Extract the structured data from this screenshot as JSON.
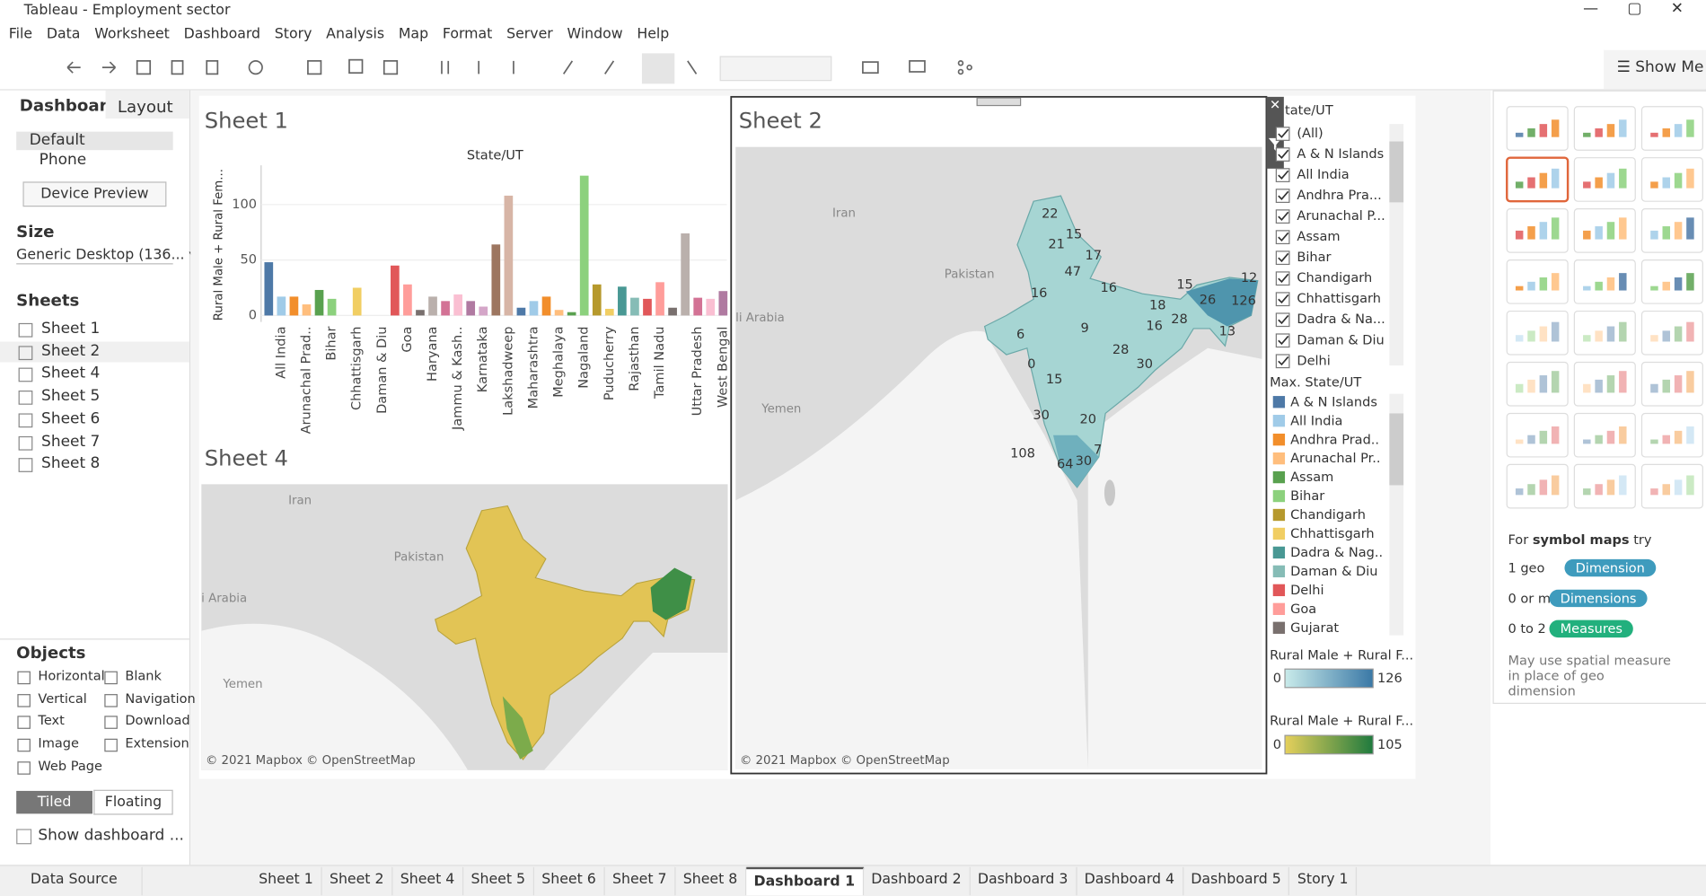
{
  "window": {
    "title": "Tableau - Employment sector"
  },
  "menu": [
    "File",
    "Data",
    "Worksheet",
    "Dashboard",
    "Story",
    "Analysis",
    "Map",
    "Format",
    "Server",
    "Window",
    "Help"
  ],
  "left_panel": {
    "tabs": [
      "Dashboard",
      "Layout"
    ],
    "devices": [
      "Default",
      "Phone"
    ],
    "device_preview": "Device Preview",
    "size_heading": "Size",
    "size_value": "Generic Desktop (136...",
    "sheets_heading": "Sheets",
    "sheets": [
      "Sheet 1",
      "Sheet 2",
      "Sheet 4",
      "Sheet 5",
      "Sheet 6",
      "Sheet 7",
      "Sheet 8"
    ],
    "objects_heading": "Objects",
    "objects": [
      "Horizontal",
      "Blank",
      "Vertical",
      "Navigation",
      "Text",
      "Download",
      "Image",
      "Extension",
      "Web Page"
    ],
    "layout_buttons": [
      "Tiled",
      "Floating"
    ],
    "show_title": "Show dashboard ..."
  },
  "sheet1_title": "Sheet 1",
  "chart_data": {
    "type": "bar",
    "title": "State/UT",
    "y_label": "Rural Male + Rural Fem...",
    "categories": [
      null,
      "All India",
      null,
      "Arunachal Prad..",
      null,
      "Bihar",
      null,
      "Chhattisgarh",
      null,
      "Daman & Diu",
      null,
      "Goa",
      null,
      "Haryana",
      null,
      "Jammu & Kash..",
      null,
      "Karnataka",
      null,
      "Lakshadweep",
      null,
      "Maharashtra",
      null,
      "Meghalaya",
      null,
      "Nagaland",
      null,
      "Puducherry",
      null,
      "Rajasthan",
      null,
      "Tamil Nadu",
      null,
      null,
      "Uttar Pradesh",
      null,
      "West Bengal"
    ],
    "values": [
      48,
      17,
      17,
      10,
      23,
      15,
      0,
      25,
      0,
      0,
      45,
      28,
      5,
      17,
      13,
      19,
      13,
      8,
      64,
      108,
      7,
      13,
      17,
      5,
      3,
      126,
      28,
      6,
      26,
      16,
      15,
      30,
      7,
      74,
      16,
      15,
      22
    ],
    "colors": [
      "#4e79a7",
      "#a0cbe8",
      "#f28e2b",
      "#ffbe7d",
      "#59a14f",
      "#8cd17d",
      "#b6992d",
      "#f1ce63",
      "#499894",
      "#86bcb6",
      "#e15759",
      "#ff9d9a",
      "#79706e",
      "#bab0ac",
      "#d37295",
      "#fabfd2",
      "#b07aa1",
      "#d4a6c8",
      "#9d7660",
      "#d7b5a6"
    ],
    "ylim": [
      0,
      135
    ],
    "yticks": [
      0,
      50,
      100
    ],
    "grid": true
  },
  "sheet2": {
    "title": "Sheet 2",
    "labels": [
      "22",
      "15",
      "21",
      "17",
      "47",
      "16",
      "16",
      "15",
      "12",
      "26",
      "126",
      "9",
      "18",
      "16",
      "28",
      "13",
      "6",
      "28",
      "30",
      "0",
      "15",
      "30",
      "20",
      "108",
      "7",
      "64",
      "30"
    ],
    "places": [
      "Iran",
      "Pakistan",
      "li Arabia",
      "Yemen"
    ],
    "attribution": "© 2021 Mapbox © OpenStreetMap"
  },
  "sheet4": {
    "title": "Sheet 4",
    "places": [
      "Iran",
      "Pakistan",
      "i Arabia",
      "Yemen"
    ],
    "attribution": "© 2021 Mapbox © OpenStreetMap"
  },
  "filter": {
    "title": "tate/UT",
    "items": [
      "(All)",
      "A & N Islands",
      "All India",
      "Andhra Pra...",
      "Arunachal P...",
      "Assam",
      "Bihar",
      "Chandigarh",
      "Chhattisgarh",
      "Dadra & Na...",
      "Daman & Diu",
      "Delhi"
    ]
  },
  "color_legend": {
    "title": "Max. State/UT",
    "items": [
      "A & N Islands",
      "All India",
      "Andhra Prad..",
      "Arunachal Pr..",
      "Assam",
      "Bihar",
      "Chandigarh",
      "Chhattisgarh",
      "Dadra & Nag..",
      "Daman & Diu",
      "Delhi",
      "Goa",
      "Gujarat"
    ]
  },
  "legend_teal": {
    "title": "Rural Male + Rural F...",
    "min": 0,
    "max": 126
  },
  "legend_green": {
    "title": "Rural Male + Rural F...",
    "min": 0,
    "max": 105
  },
  "show_me": {
    "button": "Show Me",
    "hint_for": "For",
    "hint_bold": "symbol maps",
    "hint_try": "try",
    "rows": [
      [
        "1 geo",
        "Dimension"
      ],
      [
        "0 or more",
        "Dimensions"
      ],
      [
        "0 to 2",
        "Measures"
      ]
    ],
    "note": "May use spatial measure in place of geo dimension"
  },
  "tabs": [
    "Data Source",
    "Sheet 1",
    "Sheet 2",
    "Sheet 4",
    "Sheet 5",
    "Sheet 6",
    "Sheet 7",
    "Sheet 8",
    "Dashboard 1",
    "Dashboard 2",
    "Dashboard 3",
    "Dashboard 4",
    "Dashboard 5",
    "Story 1"
  ]
}
